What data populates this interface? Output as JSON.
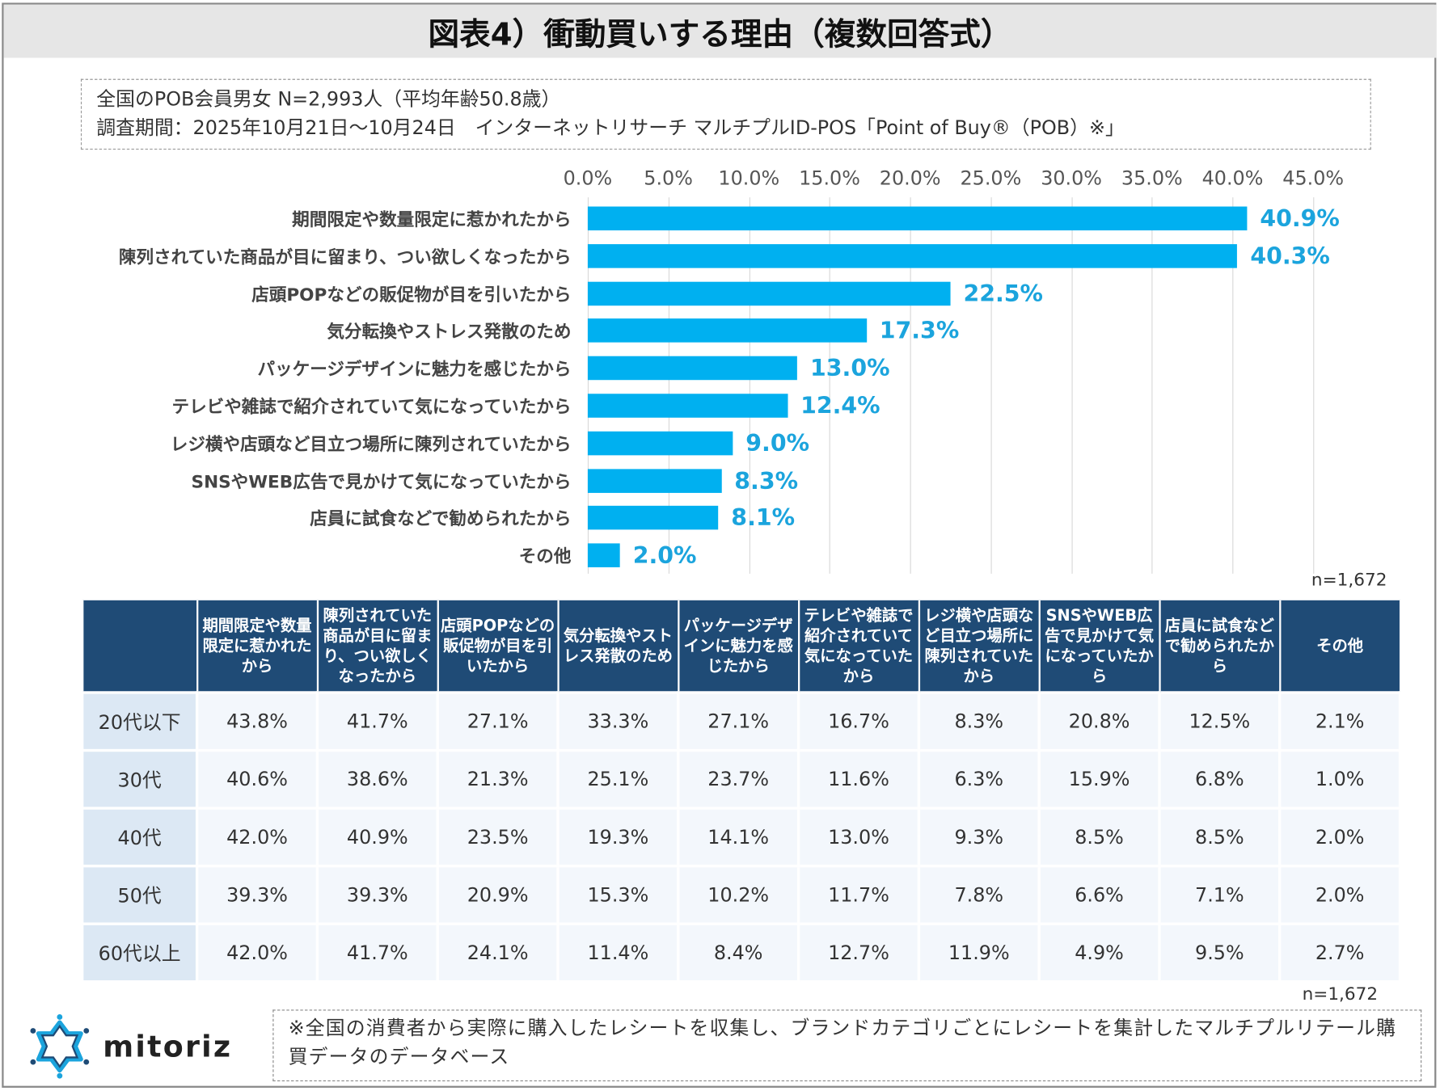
{
  "title": "図表4）衝動買いする理由（複数回答式）",
  "info": {
    "line1": "全国のPOB会員男女 N=2,993人（平均年齢50.8歳）",
    "line2": "調査期間：2025年10月21日～10月24日　インターネットリサーチ マルチプルID-POS「Point of Buy®（POB）※」"
  },
  "chart_data": {
    "type": "bar",
    "orientation": "horizontal",
    "xlim": [
      0,
      45
    ],
    "grid": true,
    "ticks": [
      "0.0%",
      "5.0%",
      "10.0%",
      "15.0%",
      "20.0%",
      "25.0%",
      "30.0%",
      "35.0%",
      "40.0%",
      "45.0%"
    ],
    "categories": [
      "期間限定や数量限定に惹かれたから",
      "陳列されていた商品が目に留まり、つい欲しくなったから",
      "店頭POPなどの販促物が目を引いたから",
      "気分転換やストレス発散のため",
      "パッケージデザインに魅力を感じたから",
      "テレビや雑誌で紹介されていて気になっていたから",
      "レジ横や店頭など目立つ場所に陳列されていたから",
      "SNSやWEB広告で見かけて気になっていたから",
      "店員に試食などで勧められたから",
      "その他"
    ],
    "values": [
      40.9,
      40.3,
      22.5,
      17.3,
      13.0,
      12.4,
      9.0,
      8.3,
      8.1,
      2.0
    ],
    "value_labels": [
      "40.9%",
      "40.3%",
      "22.5%",
      "17.3%",
      "13.0%",
      "12.4%",
      "9.0%",
      "8.3%",
      "8.1%",
      "2.0%"
    ],
    "bar_color": "#00b0f0",
    "label_color": "#1ba4dd",
    "n_label": "n=1,672"
  },
  "table": {
    "headers": [
      "",
      "期間限定や数量限定に惹かれたから",
      "陳列されていた商品が目に留まり、つい欲しくなったから",
      "店頭POPなどの販促物が目を引いたから",
      "気分転換やストレス発散のため",
      "パッケージデザインに魅力を感じたから",
      "テレビや雑誌で紹介されていて気になっていたから",
      "レジ横や店頭など目立つ場所に陳列されていたから",
      "SNSやWEB広告で見かけて気になっていたから",
      "店員に試食などで勧められたから",
      "その他"
    ],
    "rows": [
      [
        "20代以下",
        "43.8%",
        "41.7%",
        "27.1%",
        "33.3%",
        "27.1%",
        "16.7%",
        "8.3%",
        "20.8%",
        "12.5%",
        "2.1%"
      ],
      [
        "30代",
        "40.6%",
        "38.6%",
        "21.3%",
        "25.1%",
        "23.7%",
        "11.6%",
        "6.3%",
        "15.9%",
        "6.8%",
        "1.0%"
      ],
      [
        "40代",
        "42.0%",
        "40.9%",
        "23.5%",
        "19.3%",
        "14.1%",
        "13.0%",
        "9.3%",
        "8.5%",
        "8.5%",
        "2.0%"
      ],
      [
        "50代",
        "39.3%",
        "39.3%",
        "20.9%",
        "15.3%",
        "10.2%",
        "11.7%",
        "7.8%",
        "6.6%",
        "7.1%",
        "2.0%"
      ],
      [
        "60代以上",
        "42.0%",
        "41.7%",
        "24.1%",
        "11.4%",
        "8.4%",
        "12.7%",
        "11.9%",
        "4.9%",
        "9.5%",
        "2.7%"
      ]
    ],
    "n_label": "n=1,672",
    "header_color": "#1f4b76"
  },
  "footnote": "※全国の消費者から実際に購入したレシートを収集し、ブランドカテゴリごとにレシートを集計したマルチプルリテール購買データのデータベース",
  "logo": {
    "text": "mitoriz"
  }
}
